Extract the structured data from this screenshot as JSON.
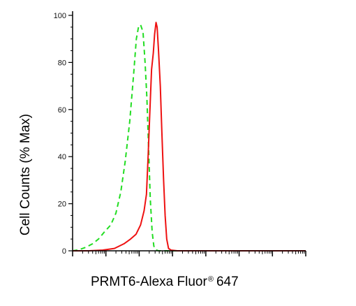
{
  "chart_data": {
    "type": "line",
    "title": "",
    "xlabel": "PRMT6-Alexa Fluor",
    "xlabel_mark": "®",
    "xlabel_suffix": "647",
    "ylabel": "Cell Counts (% Max)",
    "x_scale": "log",
    "xlim": [
      1,
      10000000
    ],
    "ylim": [
      0,
      100
    ],
    "yticks": [
      0,
      20,
      40,
      60,
      80,
      100
    ],
    "ytick_labels": [
      "0",
      "20",
      "40",
      "60",
      "80",
      "100"
    ],
    "xtick_labels_shown": false,
    "grid": false,
    "legend": "none",
    "series": [
      {
        "style": "dashed",
        "color": "#22dd22",
        "points": [
          [
            1.0,
            0
          ],
          [
            1.6,
            0.5
          ],
          [
            2.5,
            1.5
          ],
          [
            4,
            3
          ],
          [
            6,
            5
          ],
          [
            9,
            8
          ],
          [
            14,
            11
          ],
          [
            20,
            16
          ],
          [
            28,
            25
          ],
          [
            38,
            38
          ],
          [
            52,
            55
          ],
          [
            68,
            75
          ],
          [
            82,
            90
          ],
          [
            95,
            95
          ],
          [
            110,
            96
          ],
          [
            130,
            93
          ],
          [
            150,
            80
          ],
          [
            170,
            65
          ],
          [
            190,
            45
          ],
          [
            215,
            22
          ],
          [
            245,
            8
          ],
          [
            275,
            2
          ],
          [
            310,
            0.5
          ],
          [
            380,
            0
          ],
          [
            1000,
            0
          ],
          [
            10000000,
            0
          ]
        ]
      },
      {
        "style": "solid",
        "color": "#ee1111",
        "points": [
          [
            1.0,
            0
          ],
          [
            3,
            0
          ],
          [
            8,
            0.3
          ],
          [
            18,
            1
          ],
          [
            35,
            3
          ],
          [
            55,
            5
          ],
          [
            80,
            7
          ],
          [
            110,
            11
          ],
          [
            140,
            17
          ],
          [
            165,
            24
          ],
          [
            185,
            40
          ],
          [
            210,
            60
          ],
          [
            235,
            77
          ],
          [
            265,
            84
          ],
          [
            290,
            92
          ],
          [
            320,
            97
          ],
          [
            345,
            95
          ],
          [
            380,
            85
          ],
          [
            430,
            70
          ],
          [
            480,
            50
          ],
          [
            540,
            30
          ],
          [
            600,
            15
          ],
          [
            670,
            5
          ],
          [
            760,
            1
          ],
          [
            900,
            0.3
          ],
          [
            1400,
            0
          ],
          [
            10000000,
            0
          ]
        ]
      }
    ]
  }
}
